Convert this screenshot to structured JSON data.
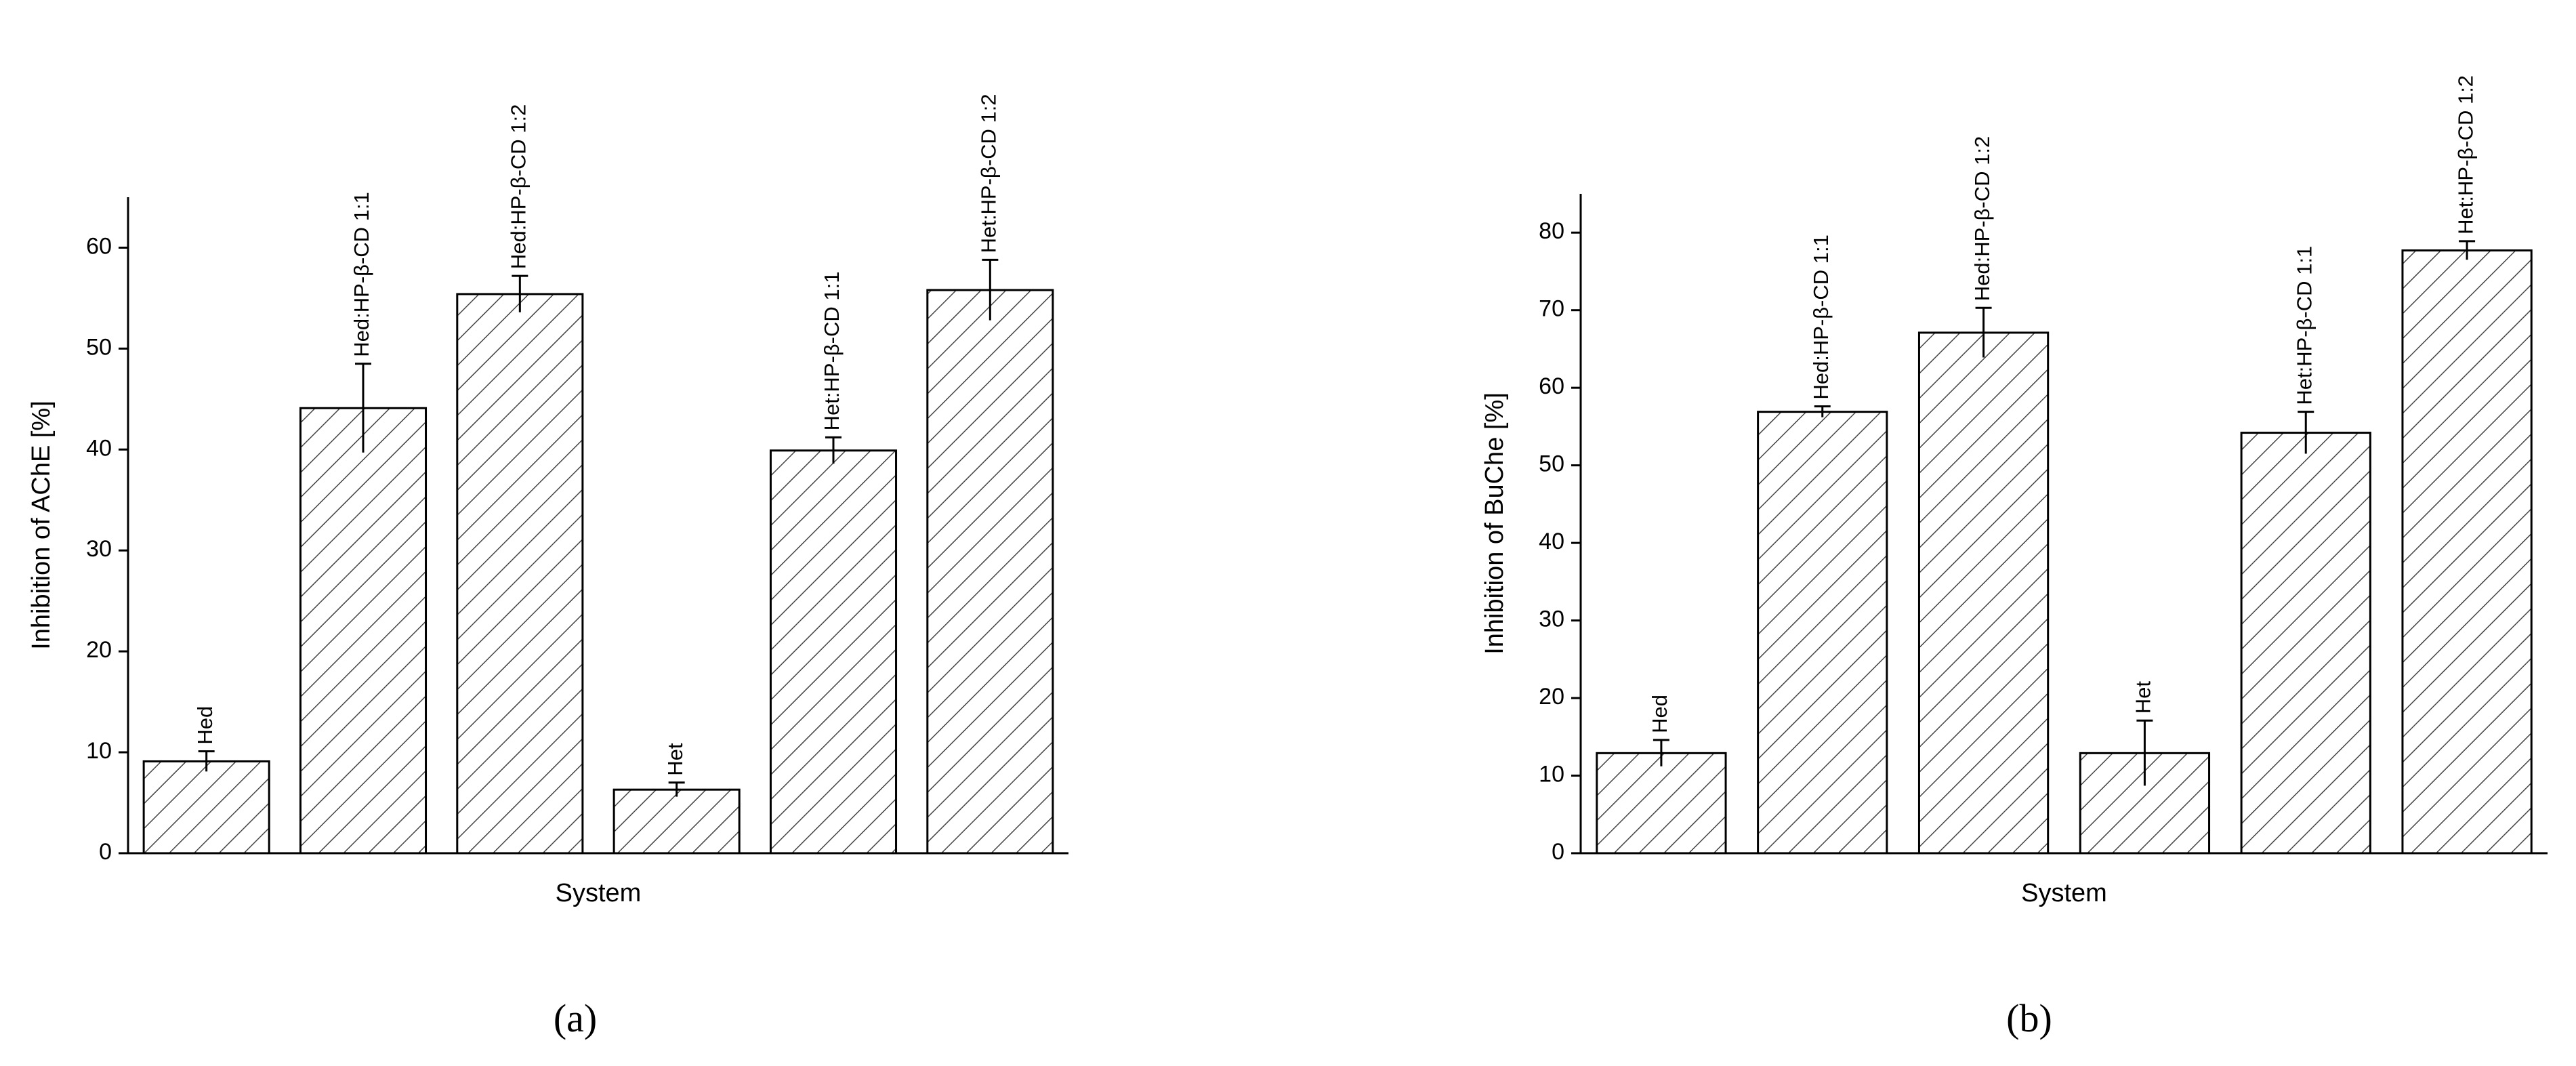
{
  "chart_data": [
    {
      "type": "bar",
      "panel_label": "(a)",
      "y_label": "Inhibition of AChE [%]",
      "x_label": "System",
      "categories": [
        "Hed",
        "Hed:HP-β-CD 1:1",
        "Hed:HP-β-CD 1:2",
        "Het",
        "Het:HP-β-CD 1:1",
        "Het:HP-β-CD 1:2"
      ],
      "values": [
        9.1,
        44.1,
        55.4,
        6.3,
        39.9,
        55.8
      ],
      "errors": [
        1.0,
        4.4,
        1.8,
        0.7,
        1.3,
        3.0
      ],
      "color": "#000000",
      "ylim": [
        0,
        65
      ],
      "yticks": [
        0,
        10,
        20,
        30,
        40,
        50,
        60
      ]
    },
    {
      "type": "bar",
      "panel_label": "(b)",
      "y_label": "Inhibition of BuChe [%]",
      "x_label": "System",
      "categories": [
        "Hed",
        "Hed:HP-β-CD 1:1",
        "Hed:HP-β-CD 1:2",
        "Het",
        "Het:HP-β-CD 1:1",
        "Het:HP-β-CD 1:2"
      ],
      "values": [
        12.9,
        56.9,
        67.1,
        12.9,
        54.2,
        77.7
      ],
      "errors": [
        1.7,
        0.7,
        3.2,
        4.2,
        2.7,
        1.2
      ],
      "color": "#000000",
      "ylim": [
        0,
        85
      ],
      "yticks": [
        0,
        10,
        20,
        30,
        40,
        50,
        60,
        70,
        80
      ]
    }
  ]
}
